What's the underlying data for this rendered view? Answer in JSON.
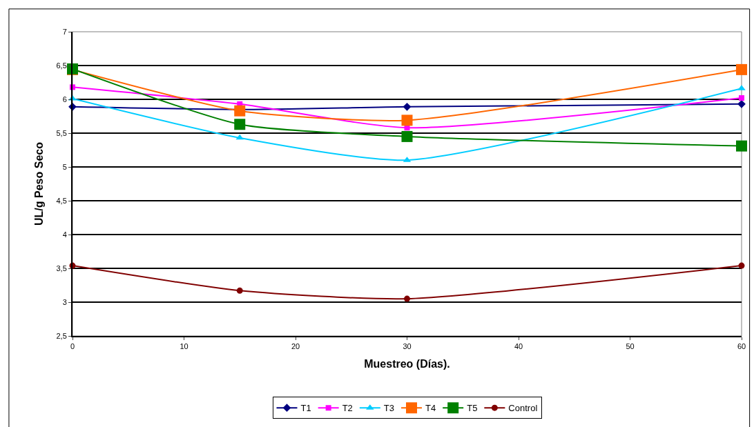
{
  "chart_data": {
    "type": "line",
    "xlabel": "Muestreo (Días).",
    "ylabel": "UL/g Peso Seco",
    "x": [
      0,
      15,
      30,
      60
    ],
    "series": [
      {
        "name": "T1",
        "color": "#000080",
        "marker": "diamond",
        "values": [
          5.89,
          5.85,
          5.89,
          5.93
        ]
      },
      {
        "name": "T2",
        "color": "#ff00ff",
        "marker": "square",
        "values": [
          6.18,
          5.93,
          5.58,
          6.02
        ]
      },
      {
        "name": "T3",
        "color": "#00ccff",
        "marker": "triangle",
        "values": [
          6.01,
          5.43,
          5.1,
          6.16
        ]
      },
      {
        "name": "T4",
        "color": "#ff6600",
        "marker": "square",
        "values": [
          6.44,
          5.83,
          5.69,
          6.44
        ]
      },
      {
        "name": "T5",
        "color": "#008000",
        "marker": "square",
        "values": [
          6.45,
          5.63,
          5.45,
          5.31
        ]
      },
      {
        "name": "Control",
        "color": "#800000",
        "marker": "circle",
        "values": [
          3.54,
          3.17,
          3.05,
          3.54
        ]
      }
    ],
    "xlim": [
      0,
      60
    ],
    "xticks": [
      0,
      10,
      20,
      30,
      40,
      50,
      60
    ],
    "ylim": [
      2.5,
      7
    ],
    "yticks": [
      {
        "value": 2.5,
        "label": "2,5"
      },
      3,
      {
        "value": 3.5,
        "label": "3,5"
      },
      4,
      {
        "value": 4.5,
        "label": "4,5"
      },
      5,
      {
        "value": 5.5,
        "label": "5,5"
      },
      6,
      {
        "value": 6.5,
        "label": "6,5"
      },
      7
    ],
    "grid": "y",
    "legend": "bottom",
    "line_style": "solid"
  }
}
